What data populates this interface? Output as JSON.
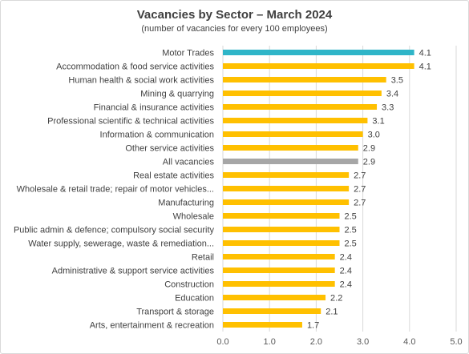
{
  "chart_data": {
    "type": "bar",
    "orientation": "horizontal",
    "title": "Vacancies by Sector – March 2024",
    "subtitle": "(number of vacancies for every 100 employees)",
    "xlabel": "",
    "ylabel": "",
    "xlim": [
      0,
      5
    ],
    "x_ticks": [
      "0.0",
      "1.0",
      "2.0",
      "3.0",
      "4.0",
      "5.0"
    ],
    "grid": true,
    "legend": "none",
    "colors": {
      "default": "#FFC000",
      "highlight": "#2FB5C8",
      "benchmark": "#A6A6A6"
    },
    "categories": [
      "Motor Trades",
      "Accommodation & food service activities",
      "Human health & social work activities",
      "Mining & quarrying",
      "Financial & insurance activities",
      "Professional scientific & technical activities",
      "Information & communication",
      "Other service activities",
      "All vacancies",
      "Real estate activities",
      "Wholesale & retail trade; repair of motor vehicles...",
      "Manufacturing",
      "Wholesale",
      "Public admin & defence; compulsory social security",
      "Water supply, sewerage, waste & remediation...",
      "Retail",
      "Administrative & support service activities",
      "Construction",
      "Education",
      "Transport & storage",
      "Arts, entertainment & recreation"
    ],
    "values": [
      4.1,
      4.1,
      3.5,
      3.4,
      3.3,
      3.1,
      3.0,
      2.9,
      2.9,
      2.7,
      2.7,
      2.7,
      2.5,
      2.5,
      2.5,
      2.4,
      2.4,
      2.4,
      2.2,
      2.1,
      1.7
    ],
    "value_labels": [
      "4.1",
      "4.1",
      "3.5",
      "3.4",
      "3.3",
      "3.1",
      "3.0",
      "2.9",
      "2.9",
      "2.7",
      "2.7",
      "2.7",
      "2.5",
      "2.5",
      "2.5",
      "2.4",
      "2.4",
      "2.4",
      "2.2",
      "2.1",
      "1.7"
    ],
    "bar_color_keys": [
      "highlight",
      "default",
      "default",
      "default",
      "default",
      "default",
      "default",
      "default",
      "benchmark",
      "default",
      "default",
      "default",
      "default",
      "default",
      "default",
      "default",
      "default",
      "default",
      "default",
      "default",
      "default"
    ]
  }
}
